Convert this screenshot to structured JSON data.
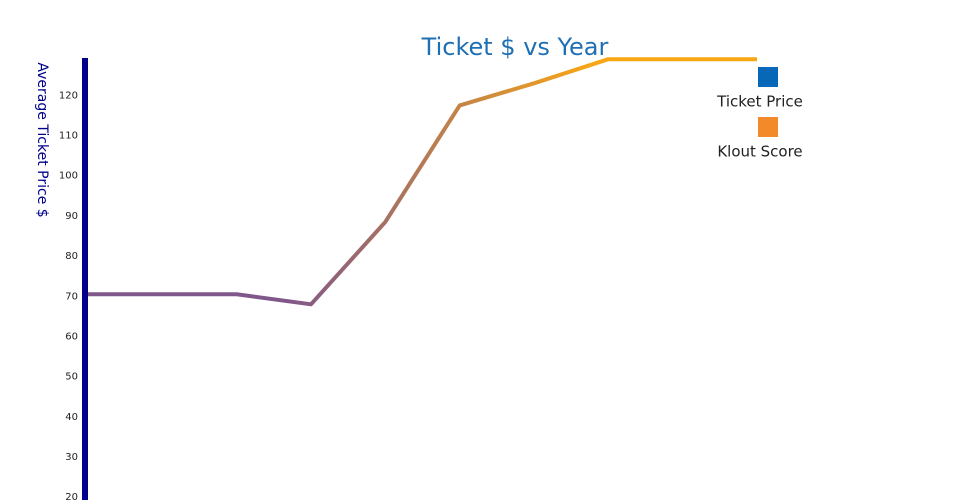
{
  "chart_data": {
    "type": "line",
    "title": "Ticket $ vs Year",
    "y_label": "Average Ticket Price $",
    "values": [
      70.5,
      70.5,
      70.5,
      68,
      88.5,
      117.5,
      123,
      129,
      129,
      129
    ],
    "line_colors": [
      "#80578a",
      "#f7a614"
    ],
    "axis_color": "#00008b",
    "title_color": "#1f6fb4",
    "ylim": [
      19.3,
      129.3
    ],
    "yticks": [
      20,
      30,
      40,
      50,
      60,
      70,
      80,
      90,
      100,
      110,
      120
    ],
    "legend": [
      {
        "name": "Ticket Price",
        "color": "#0868b8"
      },
      {
        "name": "Klout Score",
        "color": "#f28a2a"
      }
    ],
    "legend_position": "upper right"
  }
}
